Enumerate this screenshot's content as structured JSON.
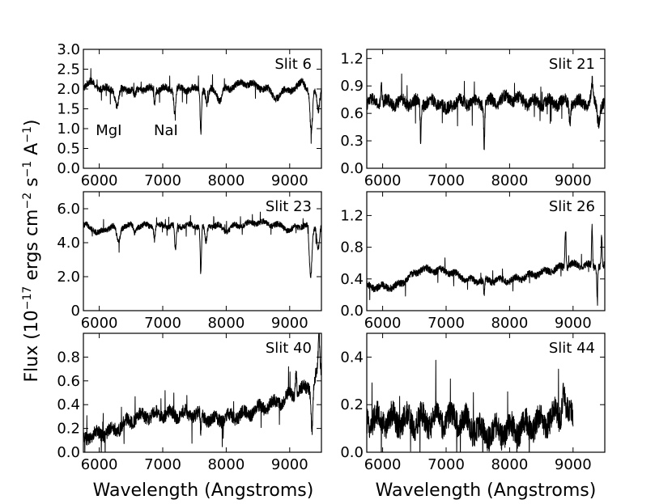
{
  "chart_data": {
    "type": "line",
    "xlabel": "Wavelength (Angstroms)",
    "ylabel": "Flux (10^-17 ergs cm^-2 s^-1 A^-1)",
    "ylabel_parts": {
      "prefix": "Flux (10",
      "exp1": "−17",
      "mid1": " ergs cm",
      "exp2": "−2",
      "mid2": " s",
      "exp3": "−1",
      "mid3": " A",
      "exp4": "−1",
      "suffix": ")"
    },
    "panels": [
      {
        "name": "Slit 6",
        "xlim": [
          5750,
          9500
        ],
        "ylim": [
          0,
          3.0
        ],
        "xticks": [
          6000,
          7000,
          8000,
          9000
        ],
        "xtick_labels": [
          "6000",
          "7000",
          "8000",
          "9000"
        ],
        "yticks": [
          0,
          0.5,
          1.0,
          1.5,
          2.0,
          2.5,
          3.0
        ],
        "ytick_labels": [
          "0.0",
          "0.5",
          "1.0",
          "1.5",
          "2.0",
          "2.5",
          "3.0"
        ],
        "annotations": [
          {
            "text": "MgI",
            "x": 6150,
            "y": 1.0
          },
          {
            "text": "NaI",
            "x": 7050,
            "y": 1.0
          }
        ],
        "spectrum": {
          "x_start": 5750,
          "x_end": 9500,
          "base": 2.0,
          "noise": 0.08,
          "features": [
            {
              "x": 5850,
              "dy": 0.15,
              "w": 120
            },
            {
              "x": 6280,
              "dy": -0.45,
              "w": 40
            },
            {
              "x": 6560,
              "dy": -0.2,
              "w": 30
            },
            {
              "x": 6870,
              "dy": -0.35,
              "w": 15
            },
            {
              "x": 7190,
              "dy": -0.6,
              "w": 20
            },
            {
              "x": 7600,
              "dy": -1.1,
              "w": 15
            },
            {
              "x": 7700,
              "dy": -0.4,
              "w": 30
            },
            {
              "x": 7900,
              "dy": -0.3,
              "w": 50
            },
            {
              "x": 8300,
              "dy": 0.15,
              "w": 200
            },
            {
              "x": 8800,
              "dy": -0.2,
              "w": 100
            },
            {
              "x": 9200,
              "dy": 0.2,
              "w": 60
            },
            {
              "x": 9340,
              "dy": -1.1,
              "w": 30
            },
            {
              "x": 9450,
              "dy": -0.5,
              "w": 30
            }
          ]
        }
      },
      {
        "name": "Slit 21",
        "xlim": [
          5750,
          9500
        ],
        "ylim": [
          0,
          1.3
        ],
        "xticks": [
          6000,
          7000,
          8000,
          9000
        ],
        "xtick_labels": [
          "6000",
          "7000",
          "8000",
          "9000"
        ],
        "yticks": [
          0,
          0.3,
          0.6,
          0.9,
          1.2
        ],
        "ytick_labels": [
          "0.0",
          "0.3",
          "0.6",
          "0.9",
          "1.2"
        ],
        "annotations": [],
        "spectrum": {
          "x_start": 5750,
          "x_end": 9500,
          "base": 0.72,
          "noise": 0.06,
          "features": [
            {
              "x": 5980,
              "dy": 0.2,
              "w": 15
            },
            {
              "x": 6600,
              "dy": -0.4,
              "w": 12
            },
            {
              "x": 7000,
              "dy": -0.1,
              "w": 60
            },
            {
              "x": 7600,
              "dy": -0.45,
              "w": 12
            },
            {
              "x": 8000,
              "dy": 0.05,
              "w": 200
            },
            {
              "x": 8950,
              "dy": -0.2,
              "w": 15
            },
            {
              "x": 9300,
              "dy": 0.2,
              "w": 20
            },
            {
              "x": 9400,
              "dy": -0.2,
              "w": 30
            }
          ]
        }
      },
      {
        "name": "Slit 23",
        "xlim": [
          5750,
          9500
        ],
        "ylim": [
          0,
          7.0
        ],
        "xticks": [
          6000,
          7000,
          8000,
          9000
        ],
        "xtick_labels": [
          "6000",
          "7000",
          "8000",
          "9000"
        ],
        "yticks": [
          0,
          2.0,
          4.0,
          6.0
        ],
        "ytick_labels": [
          "0",
          "2.0",
          "4.0",
          "6.0"
        ],
        "annotations": [],
        "spectrum": {
          "x_start": 5750,
          "x_end": 9500,
          "base": 5.0,
          "noise": 0.15,
          "features": [
            {
              "x": 6000,
              "dy": -0.4,
              "w": 120
            },
            {
              "x": 6300,
              "dy": -1.0,
              "w": 40
            },
            {
              "x": 6560,
              "dy": -0.4,
              "w": 30
            },
            {
              "x": 6870,
              "dy": -0.8,
              "w": 15
            },
            {
              "x": 7200,
              "dy": -1.5,
              "w": 18
            },
            {
              "x": 7600,
              "dy": -2.8,
              "w": 14
            },
            {
              "x": 7680,
              "dy": -1.0,
              "w": 25
            },
            {
              "x": 8000,
              "dy": -0.3,
              "w": 80
            },
            {
              "x": 8500,
              "dy": 0.2,
              "w": 200
            },
            {
              "x": 9000,
              "dy": -0.3,
              "w": 80
            },
            {
              "x": 9330,
              "dy": -3.0,
              "w": 30
            },
            {
              "x": 9450,
              "dy": -1.3,
              "w": 30
            }
          ]
        }
      },
      {
        "name": "Slit 26",
        "xlim": [
          5750,
          9500
        ],
        "ylim": [
          0,
          1.5
        ],
        "xticks": [
          6000,
          7000,
          8000,
          9000
        ],
        "xtick_labels": [
          "6000",
          "7000",
          "8000",
          "9000"
        ],
        "yticks": [
          0,
          0.4,
          0.8,
          1.2
        ],
        "ytick_labels": [
          "0.0",
          "0.4",
          "0.8",
          "1.2"
        ],
        "annotations": [],
        "spectrum": {
          "x_start": 5750,
          "x_end": 9500,
          "base": 0.33,
          "noise": 0.04,
          "trend": [
            [
              5750,
              0.3
            ],
            [
              6200,
              0.3
            ],
            [
              6600,
              0.52
            ],
            [
              7000,
              0.5
            ],
            [
              7400,
              0.38
            ],
            [
              8000,
              0.38
            ],
            [
              8600,
              0.5
            ],
            [
              9000,
              0.58
            ],
            [
              9500,
              0.55
            ]
          ],
          "features": [
            {
              "x": 7600,
              "dy": -0.18,
              "w": 12
            },
            {
              "x": 8880,
              "dy": 0.45,
              "w": 12
            },
            {
              "x": 9300,
              "dy": 0.5,
              "w": 10
            },
            {
              "x": 9380,
              "dy": -0.4,
              "w": 10
            },
            {
              "x": 9450,
              "dy": 0.4,
              "w": 10
            }
          ]
        }
      },
      {
        "name": "Slit 40",
        "xlim": [
          5750,
          9500
        ],
        "ylim": [
          0,
          1.0
        ],
        "xticks": [
          6000,
          7000,
          8000,
          9000
        ],
        "xtick_labels": [
          "6000",
          "7000",
          "8000",
          "9000"
        ],
        "yticks": [
          0,
          0.2,
          0.4,
          0.6,
          0.8
        ],
        "ytick_labels": [
          "0.0",
          "0.2",
          "0.4",
          "0.6",
          "0.8"
        ],
        "annotations": [],
        "spectrum": {
          "x_start": 5750,
          "x_end": 9500,
          "base": 0.3,
          "noise": 0.05,
          "trend": [
            [
              5750,
              0.12
            ],
            [
              6200,
              0.18
            ],
            [
              6600,
              0.3
            ],
            [
              7000,
              0.32
            ],
            [
              7500,
              0.32
            ],
            [
              7800,
              0.27
            ],
            [
              8300,
              0.32
            ],
            [
              8800,
              0.42
            ],
            [
              9300,
              0.55
            ],
            [
              9500,
              0.7
            ]
          ],
          "features": [
            {
              "x": 7600,
              "dy": -0.15,
              "w": 12
            },
            {
              "x": 9100,
              "dy": 0.2,
              "w": 15
            },
            {
              "x": 9350,
              "dy": -0.4,
              "w": 20
            },
            {
              "x": 9460,
              "dy": 0.3,
              "w": 15
            }
          ]
        }
      },
      {
        "name": "Slit 44",
        "xlim": [
          5750,
          9500
        ],
        "ylim": [
          0,
          0.5
        ],
        "xticks": [
          6000,
          7000,
          8000,
          9000
        ],
        "xtick_labels": [
          "6000",
          "7000",
          "8000",
          "9000"
        ],
        "yticks": [
          0,
          0.2,
          0.4
        ],
        "ytick_labels": [
          "0.0",
          "0.2",
          "0.4"
        ],
        "annotations": [],
        "spectrum": {
          "x_start": 5750,
          "x_end": 9000,
          "base": 0.13,
          "noise": 0.05,
          "trend": [
            [
              5750,
              0.14
            ],
            [
              6500,
              0.13
            ],
            [
              7200,
              0.14
            ],
            [
              7600,
              0.08
            ],
            [
              8200,
              0.1
            ],
            [
              8600,
              0.14
            ],
            [
              8900,
              0.16
            ],
            [
              9000,
              0.14
            ]
          ],
          "features": [
            {
              "x": 8850,
              "dy": 0.12,
              "w": 30
            }
          ]
        }
      }
    ]
  }
}
